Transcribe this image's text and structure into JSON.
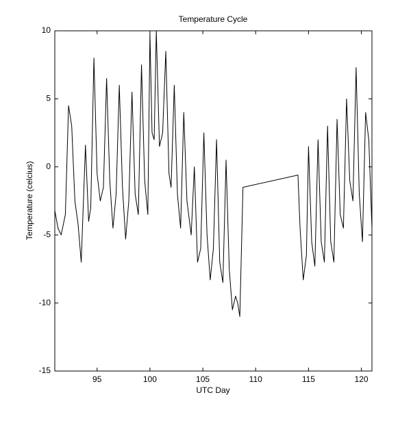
{
  "chart_data": {
    "type": "line",
    "title": "Temperature Cycle",
    "x_label": "UTC Day",
    "y_label": "Temperature (celcius)",
    "xlim": [
      91,
      121
    ],
    "ylim": [
      -15,
      10
    ],
    "xticks": [
      95,
      100,
      105,
      110,
      115,
      120
    ],
    "yticks": [
      -15,
      -10,
      -5,
      0,
      5,
      10
    ],
    "series": [
      {
        "color": "#000000",
        "x": [
          91.0,
          91.3,
          91.6,
          92.0,
          92.3,
          92.6,
          92.9,
          93.2,
          93.5,
          93.9,
          94.2,
          94.4,
          94.7,
          95.0,
          95.3,
          95.6,
          95.9,
          96.2,
          96.5,
          96.8,
          97.1,
          97.4,
          97.7,
          98.0,
          98.3,
          98.6,
          98.9,
          99.2,
          99.5,
          99.8,
          100.0,
          100.2,
          100.4,
          100.6,
          100.9,
          101.2,
          101.5,
          101.8,
          102.0,
          102.3,
          102.6,
          102.9,
          103.2,
          103.5,
          103.9,
          104.2,
          104.5,
          104.8,
          105.1,
          105.4,
          105.7,
          106.0,
          106.3,
          106.6,
          106.9,
          107.2,
          107.5,
          107.8,
          108.1,
          108.3,
          108.5,
          108.8,
          114.0,
          114.2,
          114.5,
          114.8,
          115.0,
          115.3,
          115.6,
          115.9,
          116.2,
          116.5,
          116.8,
          117.1,
          117.4,
          117.7,
          118.0,
          118.3,
          118.6,
          118.9,
          119.2,
          119.5,
          119.8,
          120.1,
          120.4,
          120.7,
          121.0
        ],
        "values": [
          -3.2,
          -4.5,
          -5.0,
          -3.5,
          4.5,
          3.0,
          -2.5,
          -4.2,
          -7.0,
          1.6,
          -4.0,
          -3.0,
          8.0,
          -0.5,
          -2.5,
          -1.5,
          6.5,
          -1.0,
          -4.5,
          -2.0,
          6.0,
          -1.5,
          -5.3,
          -2.5,
          5.5,
          -2.0,
          -3.5,
          7.5,
          -1.0,
          -3.5,
          9.8,
          2.5,
          2.0,
          10.0,
          1.5,
          2.5,
          8.5,
          -0.5,
          -1.5,
          6.0,
          -2.0,
          -4.5,
          4.0,
          -2.5,
          -5.0,
          0.0,
          -7.0,
          -6.0,
          2.5,
          -5.0,
          -8.3,
          -6.0,
          2.0,
          -7.0,
          -8.5,
          0.5,
          -7.5,
          -10.5,
          -9.5,
          -10.0,
          -11.0,
          -1.5,
          -0.6,
          -4.5,
          -8.3,
          -6.5,
          1.5,
          -5.5,
          -7.3,
          2.0,
          -5.5,
          -7.0,
          3.0,
          -5.5,
          -7.0,
          3.5,
          -3.5,
          -4.5,
          5.0,
          -1.0,
          -2.5,
          7.3,
          -2.0,
          -5.5,
          4.0,
          2.0,
          -4.5
        ]
      }
    ]
  }
}
